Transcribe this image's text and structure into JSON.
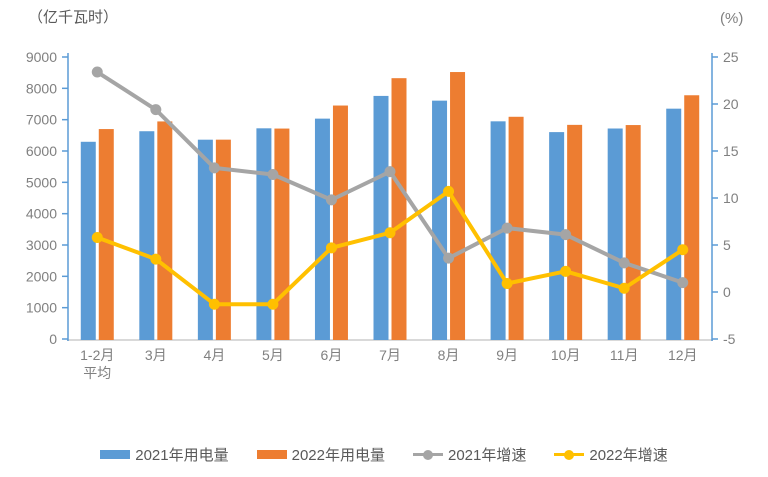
{
  "chart": {
    "left_unit": "（亿千瓦时）",
    "right_unit": "(%)",
    "colors": {
      "bar_2021": "#5B9BD5",
      "bar_2022": "#ED7D31",
      "line_2021": "#A5A5A5",
      "line_2022": "#FFC000",
      "axis_line": "#5B9BD5",
      "baseline": "#D9D9D9",
      "tick_label": "#808080",
      "x_label": "#808080",
      "unit_label": "#595959",
      "legend_text": "#595959"
    }
  },
  "chart_data": {
    "type": "bar",
    "subtype": "grouped-bar-with-lines-combo",
    "title": "",
    "xlabel": "",
    "ylabel_left": "亿千瓦时",
    "ylabel_right": "%",
    "grid": false,
    "legend_position": "bottom",
    "categories": [
      "1-2月\n平均",
      "3月",
      "4月",
      "5月",
      "6月",
      "7月",
      "8月",
      "9月",
      "10月",
      "11月",
      "12月"
    ],
    "left_axis": {
      "min": 0,
      "max": 9000,
      "step": 1000,
      "unit": "（亿千瓦时）"
    },
    "right_axis": {
      "min": -5,
      "max": 25,
      "step": 5,
      "unit": "(%)"
    },
    "series": [
      {
        "name": "2021年用电量",
        "type": "bar",
        "axis": "left",
        "color": "#5B9BD5",
        "values": [
          6294,
          6631,
          6361,
          6724,
          7033,
          7758,
          7607,
          6947,
          6603,
          6718,
          7351
        ]
      },
      {
        "name": "2022年用电量",
        "type": "bar",
        "axis": "left",
        "color": "#ED7D31",
        "values": [
          6700,
          6944,
          6362,
          6716,
          7451,
          8324,
          8520,
          7092,
          6834,
          6828,
          7779
        ]
      },
      {
        "name": "2021年增速",
        "type": "line",
        "axis": "right",
        "color": "#A5A5A5",
        "values": [
          23.4,
          19.4,
          13.2,
          12.5,
          9.8,
          12.8,
          3.6,
          6.8,
          6.1,
          3.1,
          1.0
        ]
      },
      {
        "name": "2022年增速",
        "type": "line",
        "axis": "right",
        "color": "#FFC000",
        "values": [
          5.8,
          3.5,
          -1.3,
          -1.3,
          4.7,
          6.3,
          10.7,
          0.9,
          2.2,
          0.4,
          4.5
        ]
      }
    ]
  }
}
